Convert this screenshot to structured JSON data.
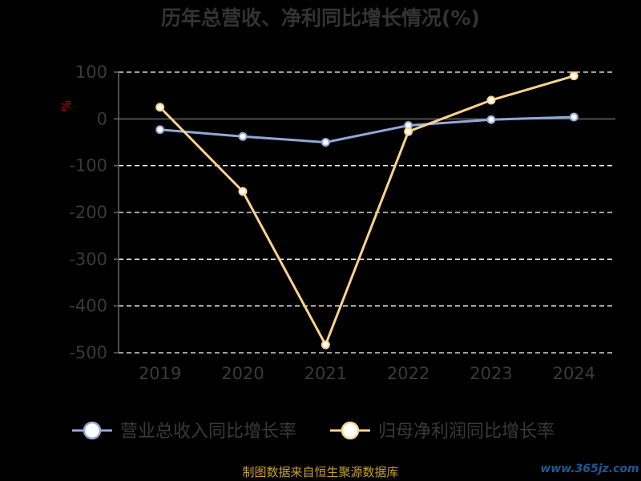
{
  "chart_data": {
    "type": "line",
    "title": "历年总营收、净利同比增长情况(%)",
    "ylabel": "%",
    "x": [
      "2019",
      "2020",
      "2021",
      "2022",
      "2023",
      "2024"
    ],
    "ylim": [
      -500,
      100
    ],
    "yticks": [
      100,
      0,
      -100,
      -200,
      -300,
      -400,
      -500
    ],
    "grid": true,
    "legend_position": "bottom",
    "series": [
      {
        "name": "营业总收入同比增长率",
        "color": "#8fa9d6",
        "values": [
          -23.0,
          -37.5,
          -50.0,
          -14.0,
          -1.5,
          4.0
        ]
      },
      {
        "name": "归母净利润同比增长率",
        "color": "#fbd38d",
        "values": [
          25.0,
          -155.0,
          -483.0,
          -27.0,
          40.0,
          92.0
        ]
      }
    ]
  },
  "footer": {
    "source": "制图数据来自恒生聚源数据库",
    "watermark": "www.365jz.com"
  }
}
